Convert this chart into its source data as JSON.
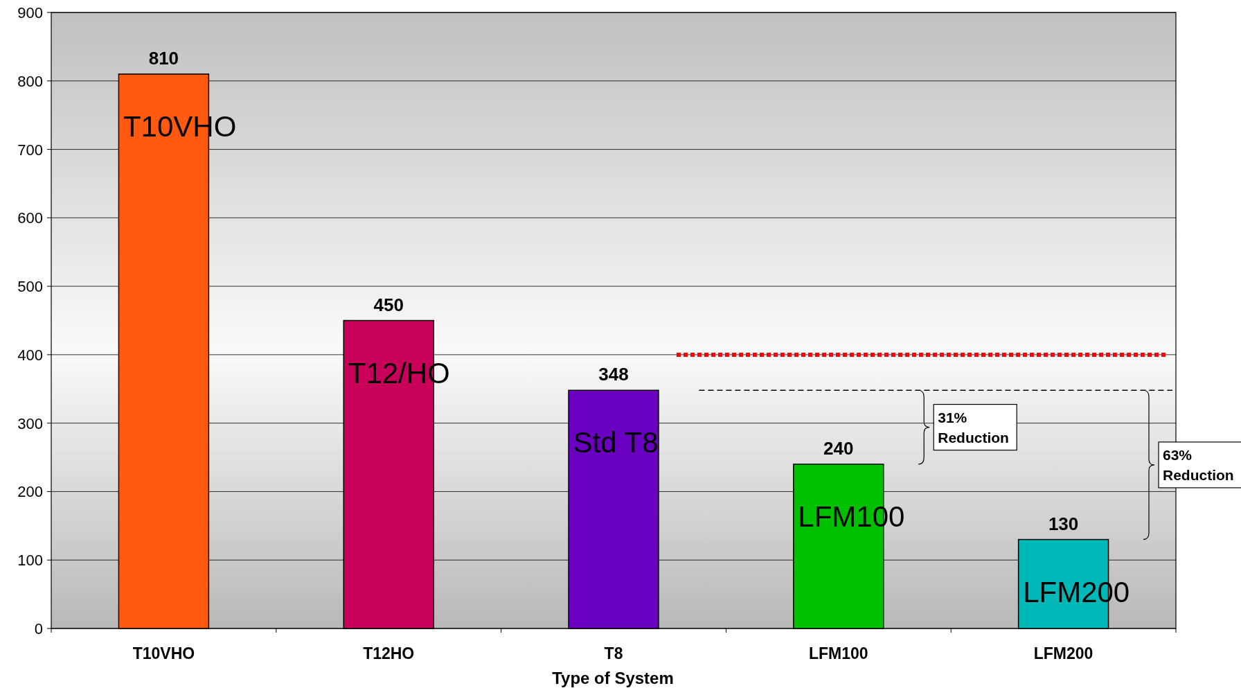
{
  "chart_data": {
    "type": "bar",
    "xlabel": "Type of System",
    "categories": [
      "T10VHO",
      "T12HO",
      "T8",
      "LFM100",
      "LFM200"
    ],
    "values": [
      810,
      450,
      348,
      240,
      130
    ],
    "colors": [
      "#ff5a10",
      "#c8005a",
      "#6a00c0",
      "#00c000",
      "#00b8b8"
    ],
    "ylim": [
      0,
      900
    ],
    "yticks": [
      0,
      100,
      200,
      300,
      400,
      500,
      600,
      700,
      800,
      900
    ],
    "grid": "y",
    "data_labels": true,
    "ref_lines": [
      {
        "axis": "y",
        "value": 400,
        "color": "#ff0000",
        "line_style": "dotted"
      },
      {
        "axis": "y",
        "value": 348,
        "color": "#000000",
        "line_style": "dashed"
      }
    ],
    "annotations": [
      "T10VHO",
      "T12/HO",
      "Std T8",
      "LFM100",
      "LFM200",
      "31% Reduction",
      "63% Reduction"
    ]
  }
}
